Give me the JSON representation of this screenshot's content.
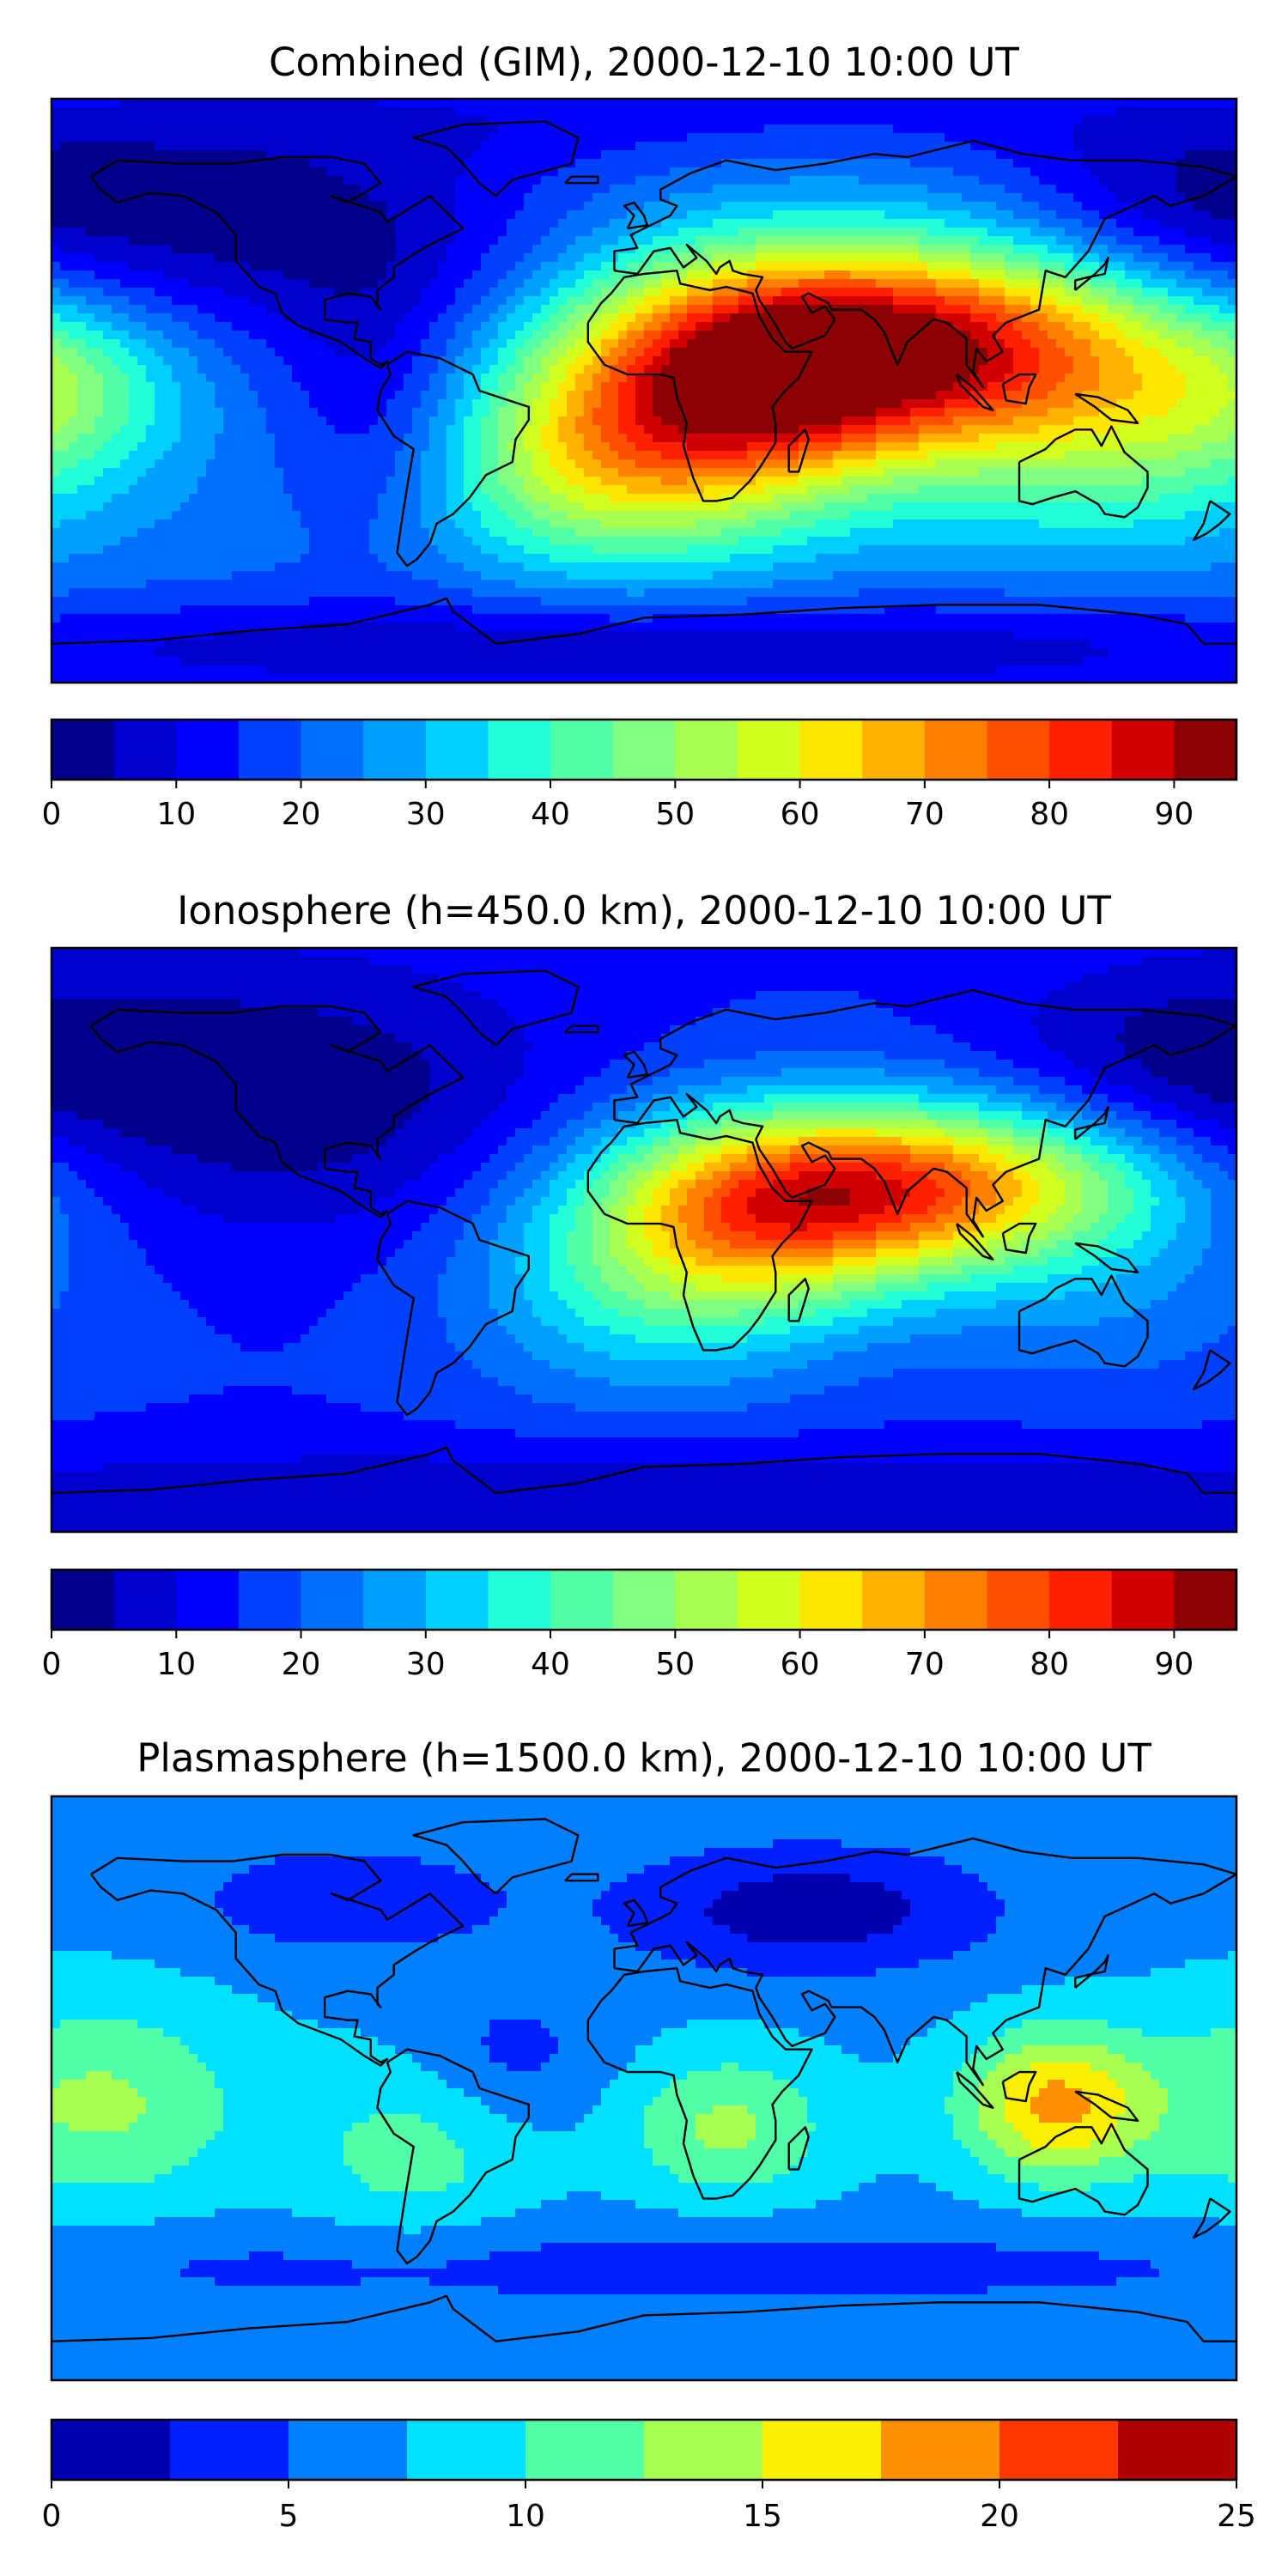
{
  "chart_data": [
    {
      "type": "heatmap",
      "title": "Combined (GIM), 2000-12-10 10:00 UT",
      "colorbar": {
        "min": 0,
        "max": 95,
        "step": 5,
        "ticks": [
          0,
          10,
          20,
          30,
          40,
          50,
          60,
          70,
          80,
          90
        ],
        "tick_labels": [
          "0",
          "10",
          "20",
          "30",
          "40",
          "50",
          "60",
          "70",
          "80",
          "90"
        ],
        "colors": [
          "#00008b",
          "#0000cd",
          "#0000ff",
          "#0040ff",
          "#0070ff",
          "#00a0ff",
          "#00d0ff",
          "#20ffd8",
          "#50ffa8",
          "#80ff80",
          "#a8ff50",
          "#d0ff20",
          "#ffe600",
          "#ffb300",
          "#ff8000",
          "#ff5000",
          "#ff2000",
          "#d00000",
          "#8b0000"
        ]
      },
      "field": {
        "base": 22,
        "blobs": [
          {
            "lon": 95,
            "lat": 15,
            "amp": 55,
            "slon": 55,
            "slat": 22
          },
          {
            "lon": 35,
            "lat": 5,
            "amp": 48,
            "slon": 40,
            "slat": 25
          },
          {
            "lon": 0,
            "lat": -15,
            "amp": 22,
            "slon": 40,
            "slat": 28
          },
          {
            "lon": 140,
            "lat": -20,
            "amp": 18,
            "slon": 40,
            "slat": 22
          },
          {
            "lon": -20,
            "lat": -25,
            "amp": 14,
            "slon": 35,
            "slat": 20
          },
          {
            "lon": -175,
            "lat": 0,
            "amp": 14,
            "slon": 25,
            "slat": 18
          },
          {
            "lon": -110,
            "lat": 50,
            "amp": -18,
            "slon": 60,
            "slat": 25
          },
          {
            "lon": 160,
            "lat": 55,
            "amp": -14,
            "slon": 40,
            "slat": 22
          },
          {
            "lon": -80,
            "lat": -5,
            "amp": -12,
            "slon": 22,
            "slat": 30
          },
          {
            "lon": 0,
            "lat": -80,
            "amp": -16,
            "slon": 200,
            "slat": 12
          },
          {
            "lon": 0,
            "lat": 85,
            "amp": -8,
            "slon": 200,
            "slat": 12
          }
        ]
      }
    },
    {
      "type": "heatmap",
      "title": "Ionosphere  (h=450.0 km), 2000-12-10 10:00 UT",
      "colorbar": {
        "min": 0,
        "max": 95,
        "step": 5,
        "ticks": [
          0,
          10,
          20,
          30,
          40,
          50,
          60,
          70,
          80,
          90
        ],
        "tick_labels": [
          "0",
          "10",
          "20",
          "30",
          "40",
          "50",
          "60",
          "70",
          "80",
          "90"
        ],
        "colors": [
          "#00008b",
          "#0000cd",
          "#0000ff",
          "#0040ff",
          "#0070ff",
          "#00a0ff",
          "#00d0ff",
          "#20ffd8",
          "#50ffa8",
          "#80ff80",
          "#a8ff50",
          "#d0ff20",
          "#ffe600",
          "#ffb300",
          "#ff8000",
          "#ff5000",
          "#ff2000",
          "#d00000",
          "#8b0000"
        ]
      },
      "field": {
        "base": 15,
        "blobs": [
          {
            "lon": 90,
            "lat": 17,
            "amp": 52,
            "slon": 50,
            "slat": 18
          },
          {
            "lon": 35,
            "lat": 8,
            "amp": 38,
            "slon": 38,
            "slat": 22
          },
          {
            "lon": 0,
            "lat": -15,
            "amp": 18,
            "slon": 40,
            "slat": 25
          },
          {
            "lon": 140,
            "lat": -20,
            "amp": 8,
            "slon": 40,
            "slat": 20
          },
          {
            "lon": -110,
            "lat": 45,
            "amp": -14,
            "slon": 60,
            "slat": 30
          },
          {
            "lon": 160,
            "lat": 55,
            "amp": -10,
            "slon": 40,
            "slat": 22
          },
          {
            "lon": 0,
            "lat": -80,
            "amp": -10,
            "slon": 200,
            "slat": 12
          }
        ]
      }
    },
    {
      "type": "heatmap",
      "title": "Plasmasphere (h=1500.0 km), 2000-12-10 10:00 UT",
      "colorbar": {
        "min": 0,
        "max": 25,
        "step": 2.5,
        "ticks": [
          0,
          5,
          10,
          15,
          20,
          25
        ],
        "tick_labels": [
          "0",
          "5",
          "10",
          "15",
          "20",
          "25"
        ],
        "colors": [
          "#0000b0",
          "#0020ff",
          "#0080ff",
          "#00e0ff",
          "#50ffa8",
          "#a8ff50",
          "#f8f000",
          "#ff9000",
          "#ff3800",
          "#b00000"
        ]
      },
      "field": {
        "base": 7,
        "blobs": [
          {
            "lon": 125,
            "lat": -5,
            "amp": 11,
            "slon": 20,
            "slat": 16
          },
          {
            "lon": 25,
            "lat": -12,
            "amp": 6,
            "slon": 22,
            "slat": 16
          },
          {
            "lon": -165,
            "lat": -5,
            "amp": 6,
            "slon": 30,
            "slat": 22
          },
          {
            "lon": -70,
            "lat": -20,
            "amp": 4,
            "slon": 25,
            "slat": 20
          },
          {
            "lon": 50,
            "lat": 55,
            "amp": -6,
            "slon": 40,
            "slat": 14
          },
          {
            "lon": -90,
            "lat": 58,
            "amp": -4,
            "slon": 35,
            "slat": 12
          },
          {
            "lon": -40,
            "lat": 10,
            "amp": -3,
            "slon": 20,
            "slat": 15
          },
          {
            "lon": 0,
            "lat": -55,
            "amp": -3,
            "slon": 200,
            "slat": 10
          }
        ]
      }
    }
  ]
}
